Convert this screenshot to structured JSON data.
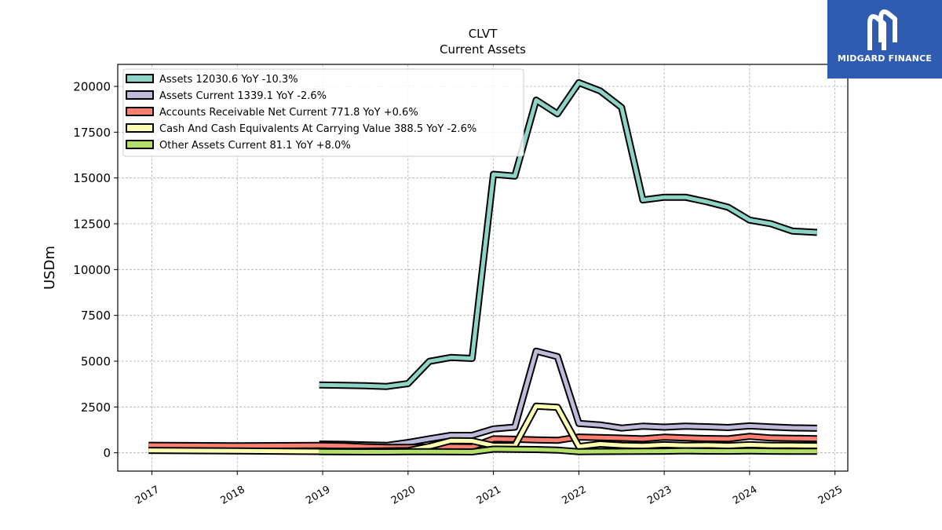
{
  "chart_data": {
    "type": "line",
    "title": "CLVT",
    "subtitle": "Current  Assets",
    "ylabel": "USDm",
    "xlabel": "",
    "xlim": [
      2016.6,
      2025.15
    ],
    "ylim": [
      -1000,
      21200
    ],
    "yticks": [
      0,
      2500,
      5000,
      7500,
      10000,
      12500,
      15000,
      17500,
      20000
    ],
    "xticks": [
      2017,
      2018,
      2019,
      2020,
      2021,
      2022,
      2023,
      2024,
      2025
    ],
    "grid": true,
    "legend_position": "top-left",
    "series": [
      {
        "name": "Assets  12030.6 YoY -10.3%",
        "color": "#8dd3c7",
        "x": [
          2018.96,
          2019.25,
          2019.5,
          2019.75,
          2020.0,
          2020.25,
          2020.5,
          2020.75,
          2021.0,
          2021.25,
          2021.5,
          2021.75,
          2022.0,
          2022.25,
          2022.5,
          2022.75,
          2023.0,
          2023.25,
          2023.5,
          2023.75,
          2024.0,
          2024.25,
          2024.5,
          2024.79
        ],
        "y": [
          3700,
          3680,
          3660,
          3620,
          3780,
          4990,
          5200,
          5150,
          15200,
          15100,
          19250,
          18500,
          20200,
          19750,
          18850,
          13800,
          13950,
          13950,
          13700,
          13400,
          12700,
          12500,
          12100,
          12030.6
        ]
      },
      {
        "name": "Assets Current  1339.1 YoY -2.6%",
        "color": "#bebada",
        "x": [
          2018.96,
          2019.25,
          2019.5,
          2019.75,
          2020.0,
          2020.25,
          2020.5,
          2020.75,
          2021.0,
          2021.25,
          2021.5,
          2021.75,
          2022.0,
          2022.25,
          2022.5,
          2022.75,
          2023.0,
          2023.25,
          2023.5,
          2023.75,
          2024.0,
          2024.25,
          2024.5,
          2024.79
        ],
        "y": [
          480,
          460,
          430,
          400,
          560,
          760,
          950,
          950,
          1300,
          1400,
          5550,
          5250,
          1600,
          1520,
          1350,
          1450,
          1400,
          1450,
          1420,
          1380,
          1470,
          1410,
          1360,
          1339.1
        ]
      },
      {
        "name": "Accounts Receivable Net Current  771.8 YoY +0.6%",
        "color": "#fb8072",
        "x": [
          2016.96,
          2018.0,
          2018.96,
          2019.25,
          2019.5,
          2019.75,
          2020.0,
          2020.25,
          2020.5,
          2020.75,
          2021.0,
          2021.25,
          2021.5,
          2021.75,
          2022.0,
          2022.25,
          2022.5,
          2022.75,
          2023.0,
          2023.25,
          2023.5,
          2023.75,
          2024.0,
          2024.25,
          2024.5,
          2024.79
        ],
        "y": [
          410,
          380,
          400,
          380,
          330,
          300,
          300,
          310,
          330,
          320,
          760,
          740,
          700,
          680,
          860,
          830,
          800,
          760,
          850,
          810,
          780,
          760,
          900,
          810,
          790,
          771.8
        ]
      },
      {
        "name": "Cash And Cash Equivalents At Carrying Value  388.5 YoY -2.6%",
        "color": "#ffffb3",
        "x": [
          2016.96,
          2018.0,
          2018.96,
          2019.25,
          2019.5,
          2019.75,
          2020.0,
          2020.25,
          2020.5,
          2020.75,
          2021.0,
          2021.25,
          2021.5,
          2021.75,
          2022.0,
          2022.25,
          2022.5,
          2022.75,
          2023.0,
          2023.25,
          2023.5,
          2023.75,
          2024.0,
          2024.25,
          2024.5,
          2024.79
        ],
        "y": [
          130,
          100,
          70,
          80,
          90,
          100,
          120,
          350,
          660,
          650,
          390,
          380,
          2550,
          2480,
          340,
          480,
          410,
          380,
          440,
          400,
          420,
          390,
          440,
          400,
          400,
          388.5
        ]
      },
      {
        "name": "Other Assets Current  81.1 YoY +8.0%",
        "color": "#b3de69",
        "x": [
          2018.96,
          2019.25,
          2019.5,
          2019.75,
          2020.0,
          2020.25,
          2020.5,
          2020.75,
          2021.0,
          2021.25,
          2021.5,
          2021.75,
          2022.0,
          2022.25,
          2022.5,
          2022.75,
          2023.0,
          2023.25,
          2023.5,
          2023.75,
          2024.0,
          2024.25,
          2024.5,
          2024.79
        ],
        "y": [
          60,
          55,
          50,
          50,
          60,
          60,
          55,
          50,
          200,
          190,
          180,
          150,
          60,
          70,
          75,
          80,
          90,
          110,
          95,
          90,
          100,
          90,
          80,
          81.1
        ]
      }
    ]
  },
  "logo": {
    "text": "MIDGARD FINANCE",
    "background": "#2f5bb0"
  }
}
